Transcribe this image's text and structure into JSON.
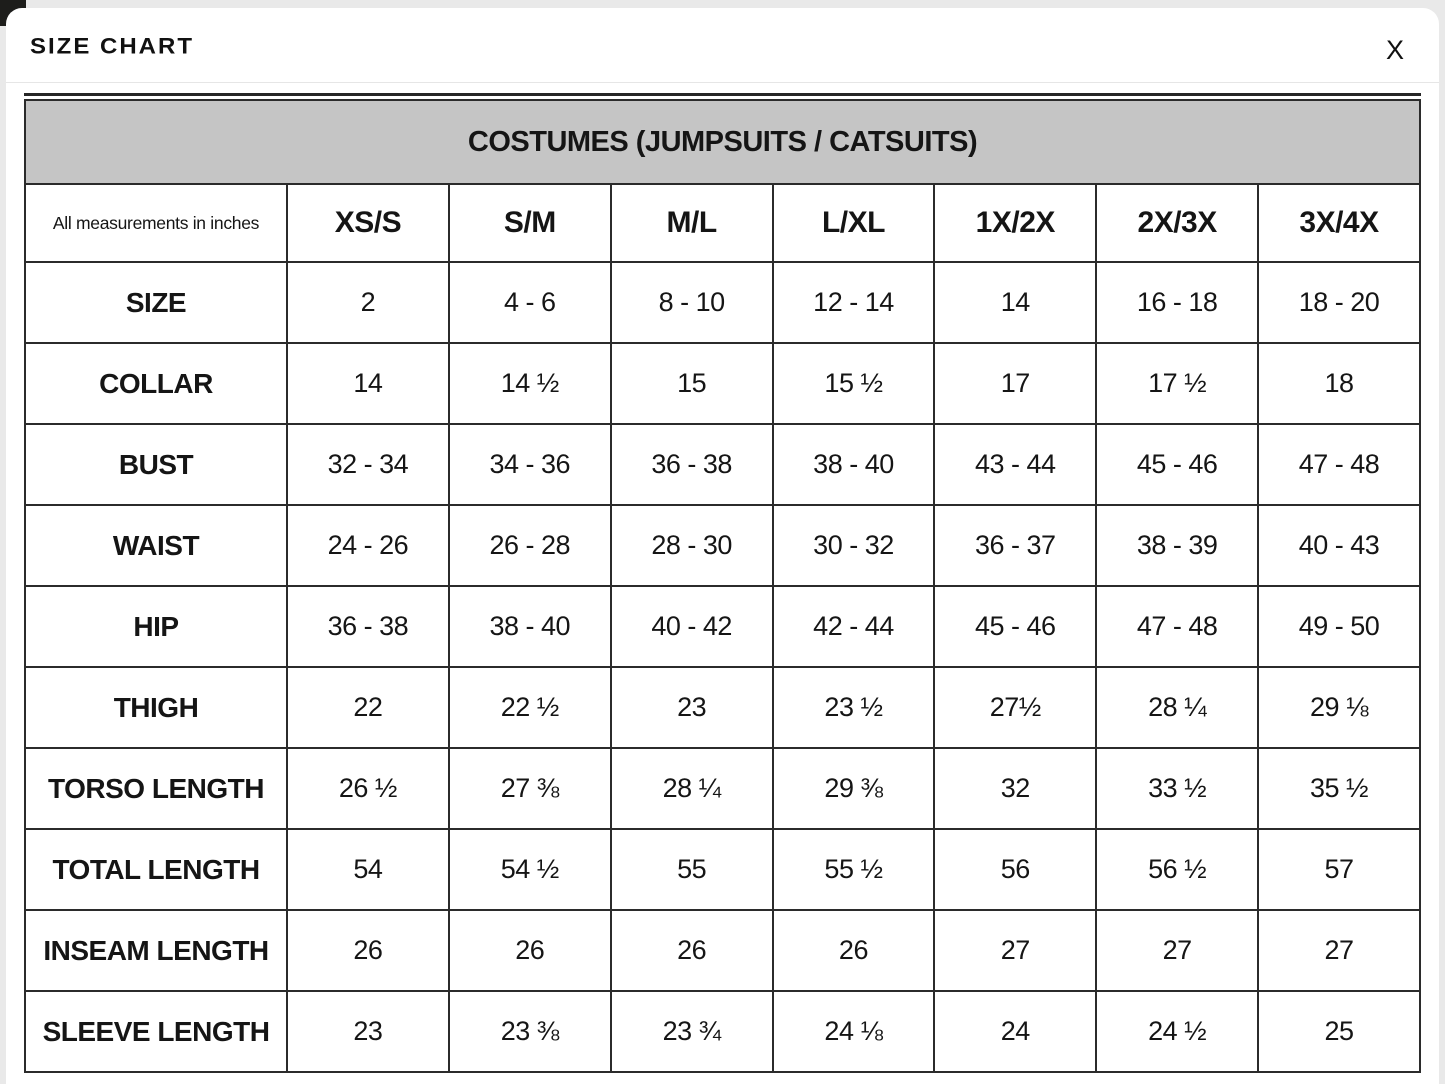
{
  "modal": {
    "title": "SIZE CHART",
    "close_label": "X"
  },
  "table": {
    "title": "COSTUMES (JUMPSUITS / CATSUITS)",
    "corner_note": "All measurements in inches",
    "columns": [
      "XS/S",
      "S/M",
      "M/L",
      "L/XL",
      "1X/2X",
      "2X/3X",
      "3X/4X"
    ],
    "rows": [
      {
        "label": "SIZE",
        "values": [
          "2",
          "4 - 6",
          "8 - 10",
          "12 - 14",
          "14",
          "16 - 18",
          "18 - 20"
        ]
      },
      {
        "label": "COLLAR",
        "values": [
          "14",
          "14 ½",
          "15",
          "15 ½",
          "17",
          "17 ½",
          "18"
        ]
      },
      {
        "label": "BUST",
        "values": [
          "32 - 34",
          "34 - 36",
          "36 - 38",
          "38 - 40",
          "43 - 44",
          "45 - 46",
          "47 - 48"
        ]
      },
      {
        "label": "WAIST",
        "values": [
          "24 - 26",
          "26 - 28",
          "28 - 30",
          "30 - 32",
          "36 - 37",
          "38 - 39",
          "40 - 43"
        ]
      },
      {
        "label": "HIP",
        "values": [
          "36 - 38",
          "38 - 40",
          "40 - 42",
          "42 - 44",
          "45 - 46",
          "47 - 48",
          "49 - 50"
        ]
      },
      {
        "label": "THIGH",
        "values": [
          "22",
          "22 ½",
          "23",
          "23 ½",
          "27½",
          "28 ¼",
          "29 ⅛"
        ]
      },
      {
        "label": "TORSO LENGTH",
        "values": [
          "26 ½",
          "27 ⅜",
          "28 ¼",
          "29 ⅜",
          "32",
          "33 ½",
          "35 ½"
        ]
      },
      {
        "label": "TOTAL LENGTH",
        "values": [
          "54",
          "54 ½",
          "55",
          "55 ½",
          "56",
          "56 ½",
          "57"
        ]
      },
      {
        "label": "INSEAM LENGTH",
        "values": [
          "26",
          "26",
          "26",
          "26",
          "27",
          "27",
          "27"
        ]
      },
      {
        "label": "SLEEVE LENGTH",
        "values": [
          "23",
          "23 ⅜",
          "23 ¾",
          "24 ⅛",
          "24",
          "24 ½",
          "25"
        ]
      }
    ]
  },
  "colors": {
    "header_band": "#c5c5c5",
    "table_border": "#2b2b2b",
    "text": "#151515",
    "divider": "#e6e6e6",
    "backdrop": "#e9e9e9",
    "backdrop_dark_corner": "#1d1d1b"
  }
}
